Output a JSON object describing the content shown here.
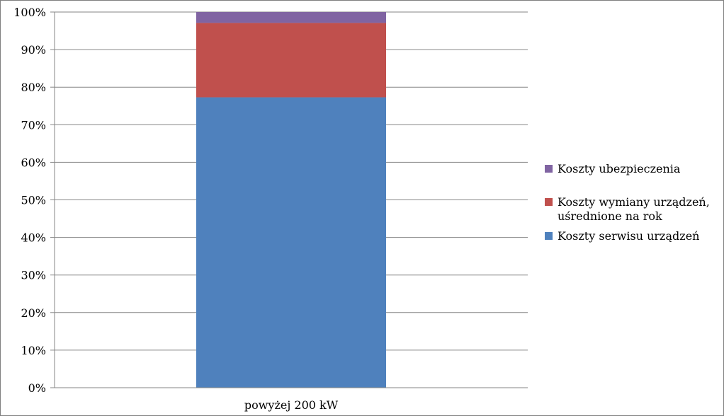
{
  "chart_data": {
    "type": "bar",
    "stacked": true,
    "percent_stacked": true,
    "categories": [
      "powyżej 200 kW"
    ],
    "series": [
      {
        "name": "Koszty serwisu urządzeń",
        "values": [
          77.3
        ],
        "color": "#4f81bd"
      },
      {
        "name": "Koszty wymiany urządzeń, uśrednione na rok",
        "values": [
          19.8
        ],
        "color": "#c0504d"
      },
      {
        "name": "Koszty ubezpieczenia",
        "values": [
          2.9
        ],
        "color": "#8064a2"
      }
    ],
    "yticks": [
      "0%",
      "10%",
      "20%",
      "30%",
      "40%",
      "50%",
      "60%",
      "70%",
      "80%",
      "90%",
      "100%"
    ],
    "ylim": [
      0,
      100
    ],
    "grid": true,
    "legend_position": "right",
    "legend_lines": [
      [
        "Koszty ubezpieczenia"
      ],
      [
        "Koszty wymiany urządzeń,",
        "uśrednione na rok"
      ],
      [
        "Koszty serwisu urządzeń"
      ]
    ]
  }
}
